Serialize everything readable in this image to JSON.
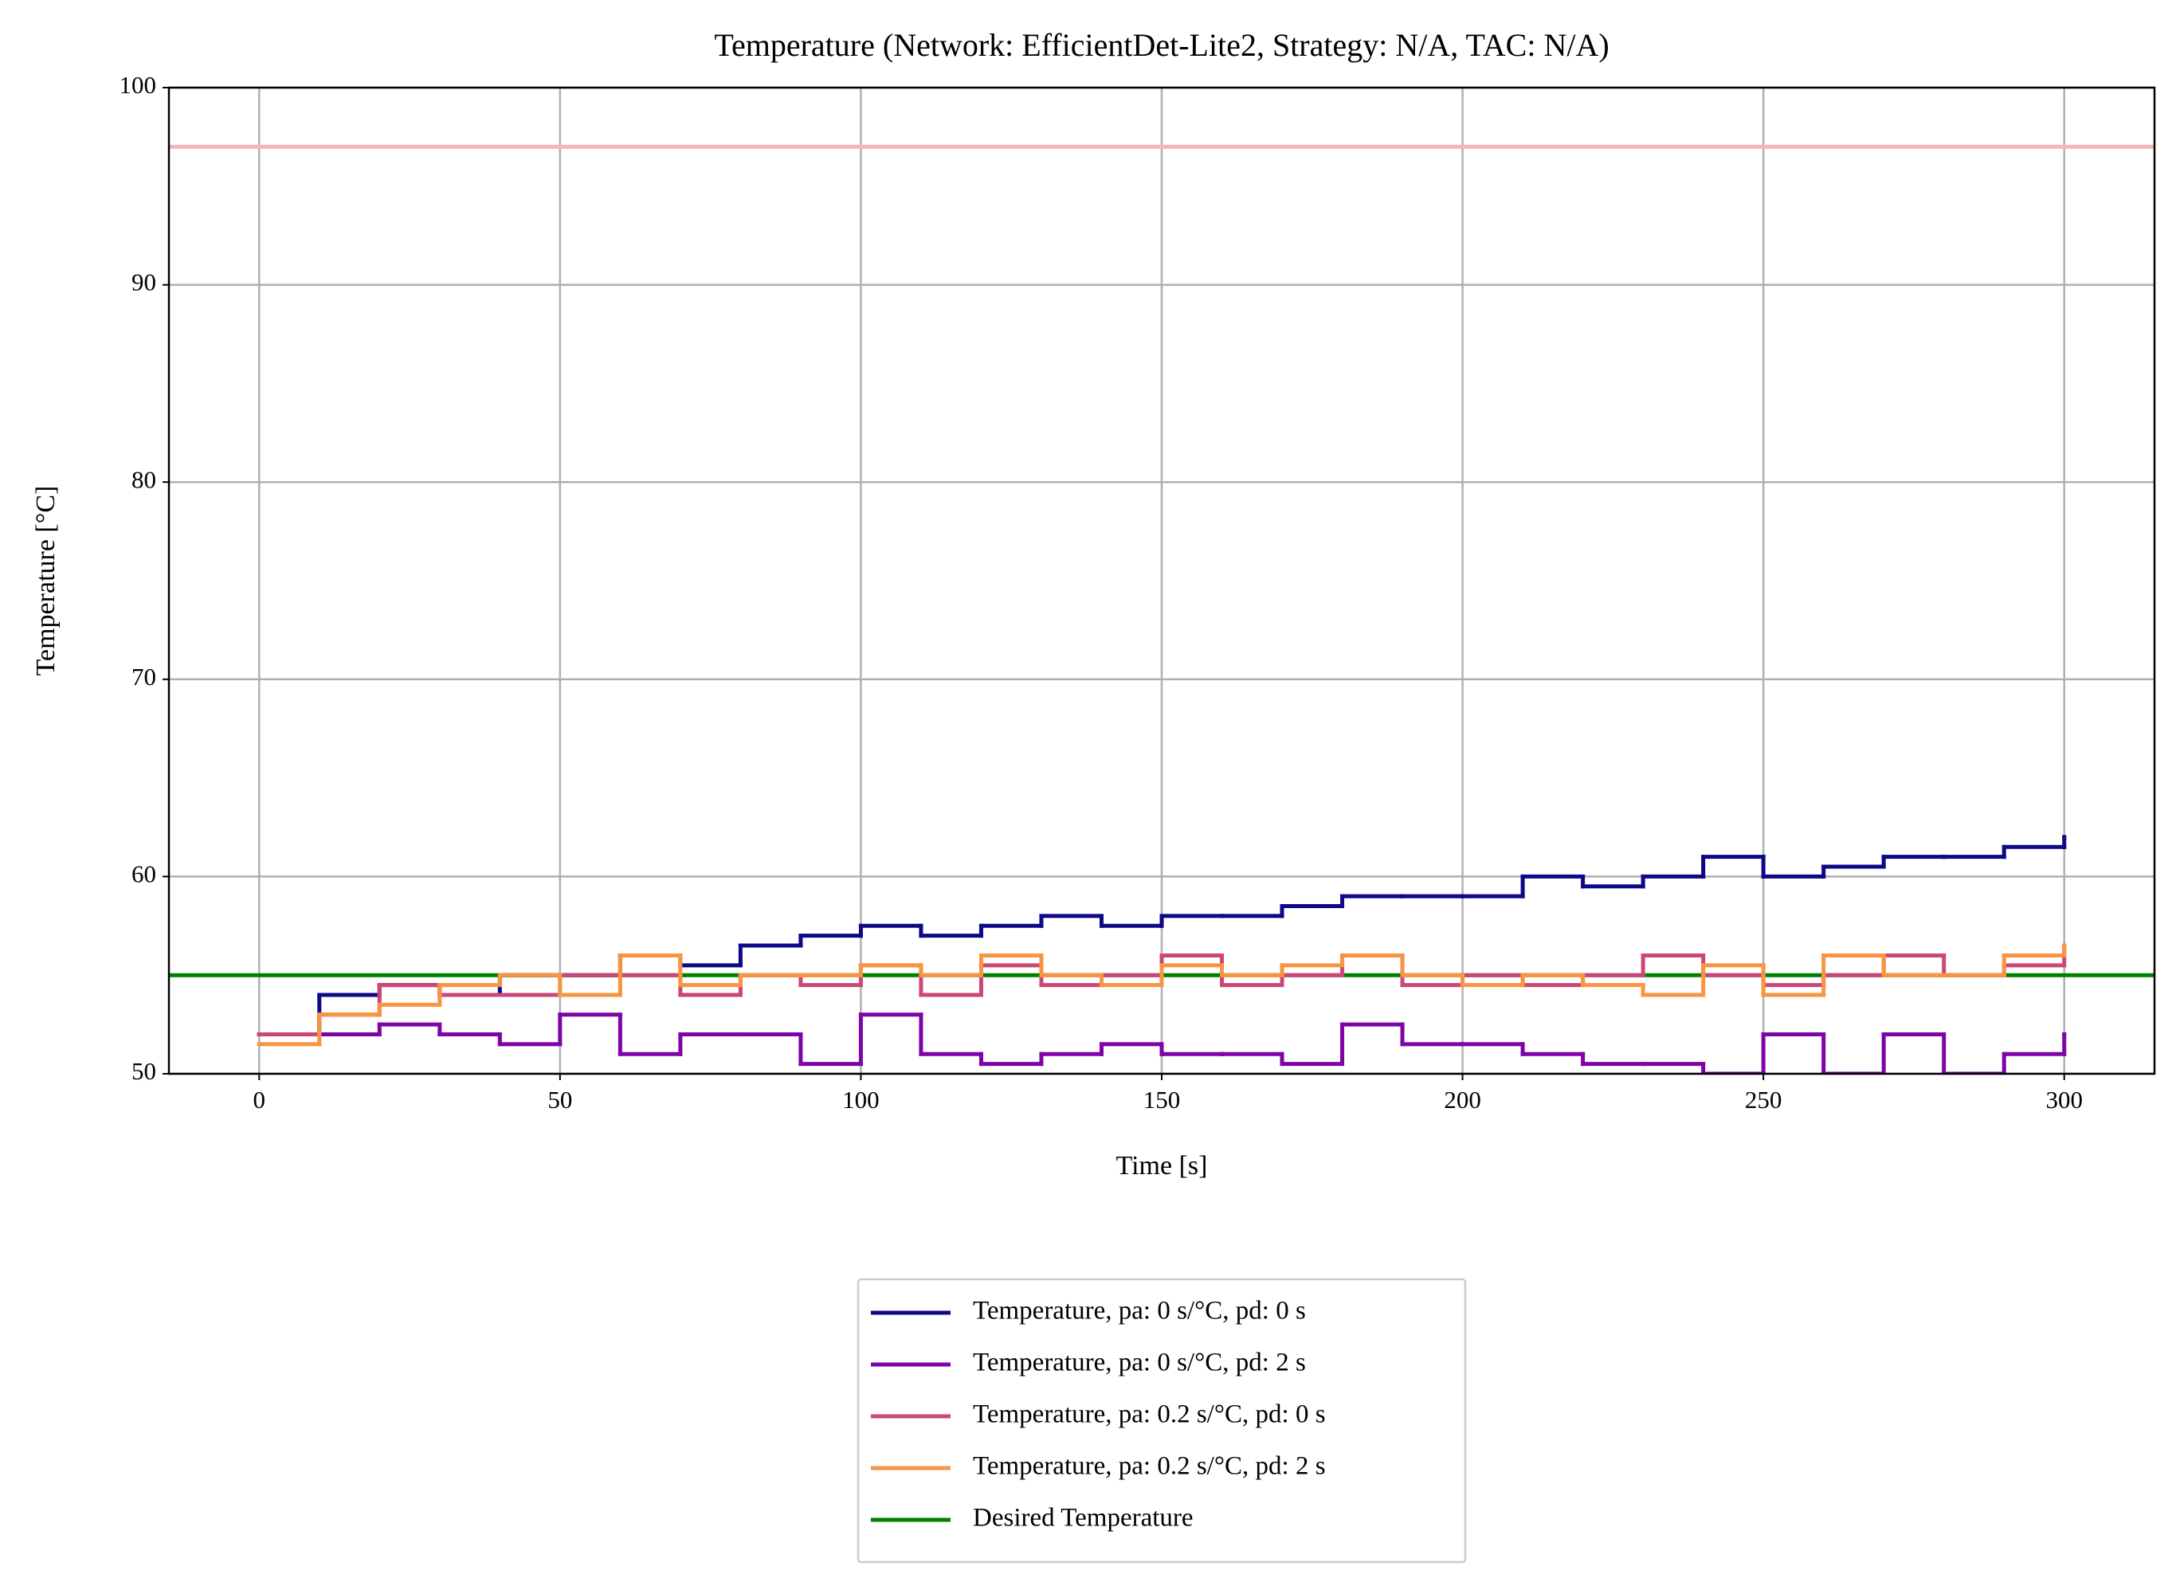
{
  "chart_data": {
    "type": "step",
    "title": "Temperature (Network: EfficientDet-Lite2, Strategy: N/A, TAC: N/A)",
    "x_label": "Time [s]",
    "y_label": "Temperature [°C]",
    "x": [
      0,
      10,
      20,
      30,
      40,
      50,
      60,
      70,
      80,
      90,
      100,
      110,
      120,
      130,
      140,
      150,
      160,
      170,
      180,
      190,
      200,
      210,
      220,
      230,
      240,
      250,
      260,
      270,
      280,
      290,
      300
    ],
    "series": [
      {
        "name": "Temperature, pa: 0 s/°C, pd: 0 s",
        "color": "#0d0887",
        "values": [
          52,
          54,
          54.5,
          54,
          55,
          55,
          56,
          55.5,
          56.5,
          57,
          57.5,
          57,
          57.5,
          58,
          57.5,
          58,
          58,
          58.5,
          59,
          59,
          59,
          60,
          59.5,
          60,
          61,
          60,
          60.5,
          61,
          61,
          61.5,
          62
        ]
      },
      {
        "name": "Temperature, pa: 0 s/°C, pd: 2 s",
        "color": "#7e03a8",
        "values": [
          52,
          52,
          52.5,
          52,
          51.5,
          53,
          51,
          52,
          52,
          50.5,
          53,
          51,
          50.5,
          51,
          51.5,
          51,
          51,
          50.5,
          52.5,
          51.5,
          51.5,
          51,
          50.5,
          50.5,
          50,
          52,
          50,
          52,
          50,
          51,
          52
        ]
      },
      {
        "name": "Temperature, pa: 0.2 s/°C, pd: 0 s",
        "color": "#cc4778",
        "values": [
          52,
          53,
          54.5,
          54,
          54,
          55,
          55,
          54,
          55,
          54.5,
          55.5,
          54,
          55.5,
          54.5,
          55,
          56,
          54.5,
          55,
          56,
          54.5,
          55,
          54.5,
          55,
          56,
          55,
          54.5,
          55,
          56,
          55,
          55.5,
          56.5
        ]
      },
      {
        "name": "Temperature, pa: 0.2 s/°C, pd: 2 s",
        "color": "#f89540",
        "values": [
          51.5,
          53,
          53.5,
          54.5,
          55,
          54,
          56,
          54.5,
          55,
          55,
          55.5,
          55,
          56,
          55,
          54.5,
          55.5,
          55,
          55.5,
          56,
          55,
          54.5,
          55,
          54.5,
          54,
          55.5,
          54,
          56,
          55,
          55,
          56,
          56.5
        ]
      }
    ],
    "reference_lines": [
      {
        "name": "Desired Temperature",
        "value": 55,
        "color": "#008000"
      },
      {
        "value": 97,
        "color": "#f7b6b6"
      }
    ],
    "xlim": [
      -15,
      315
    ],
    "ylim": [
      50,
      100
    ],
    "xticks": [
      0,
      50,
      100,
      150,
      200,
      250,
      300
    ],
    "yticks": [
      50,
      60,
      70,
      80,
      90,
      100
    ],
    "grid": true,
    "legend": "lower center outside"
  }
}
